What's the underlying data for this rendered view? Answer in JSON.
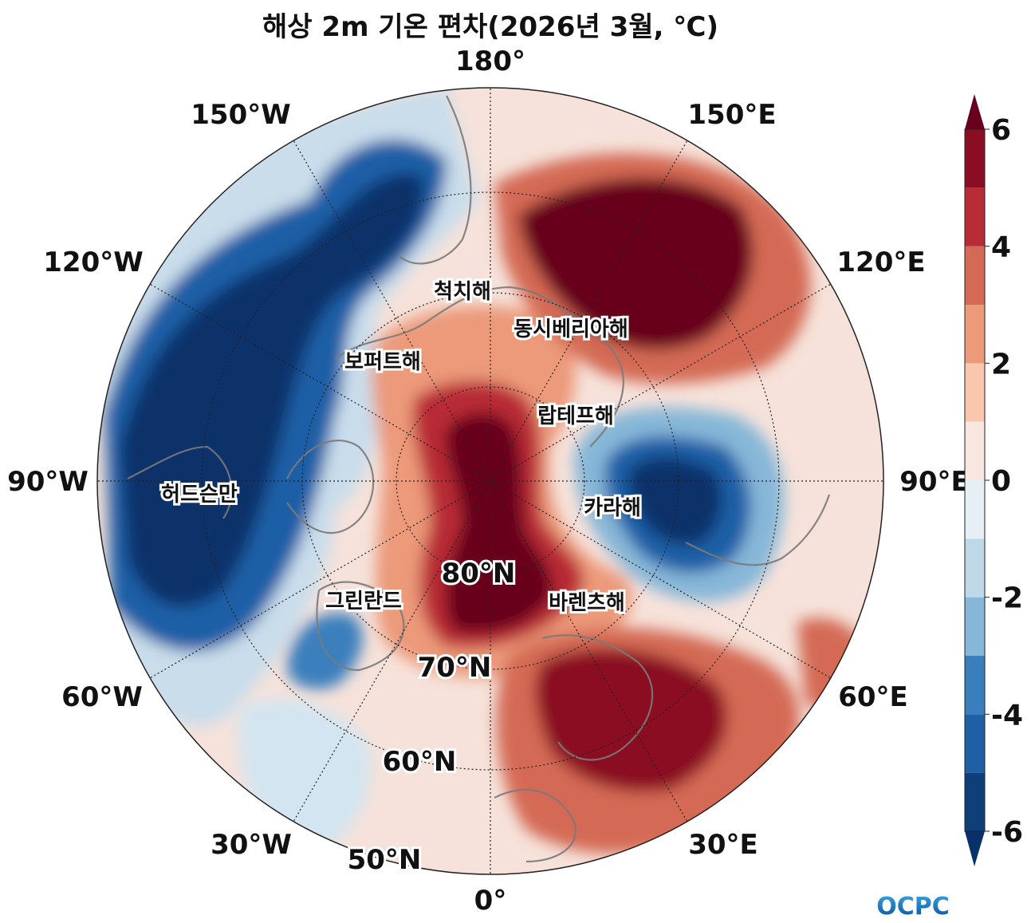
{
  "title": "해상 2m 기온 편차(2026년 3월, ℃)",
  "map": {
    "longitude_labels": [
      "180°",
      "150°E",
      "120°E",
      "90°E",
      "60°E",
      "30°E",
      "0°",
      "30°W",
      "60°W",
      "90°W",
      "120°W",
      "150°W"
    ],
    "latitude_labels": [
      "80°N",
      "70°N",
      "60°N",
      "50°N"
    ],
    "region_labels": [
      "척치해",
      "동시베리아해",
      "보퍼트해",
      "랍테프해",
      "허드슨만",
      "카라해",
      "그린란드",
      "바렌츠해"
    ]
  },
  "colorbar": {
    "ticks": [
      "6",
      "4",
      "2",
      "0",
      "-2",
      "-4",
      "-6"
    ],
    "levels": [
      -6,
      -5,
      -4,
      -3,
      -2,
      -1,
      0,
      1,
      2,
      3,
      4,
      5,
      6
    ],
    "colors": [
      "#0f3f78",
      "#1f5fa6",
      "#3a7fbd",
      "#86b7d8",
      "#bed8e8",
      "#e6eff6",
      "#f8e7e0",
      "#f8c7ae",
      "#ec9a7a",
      "#d46a55",
      "#b82c36",
      "#8a0d24"
    ],
    "under_color": "#08306b",
    "over_color": "#67001f"
  },
  "logo": {
    "text": "OCPC"
  }
}
